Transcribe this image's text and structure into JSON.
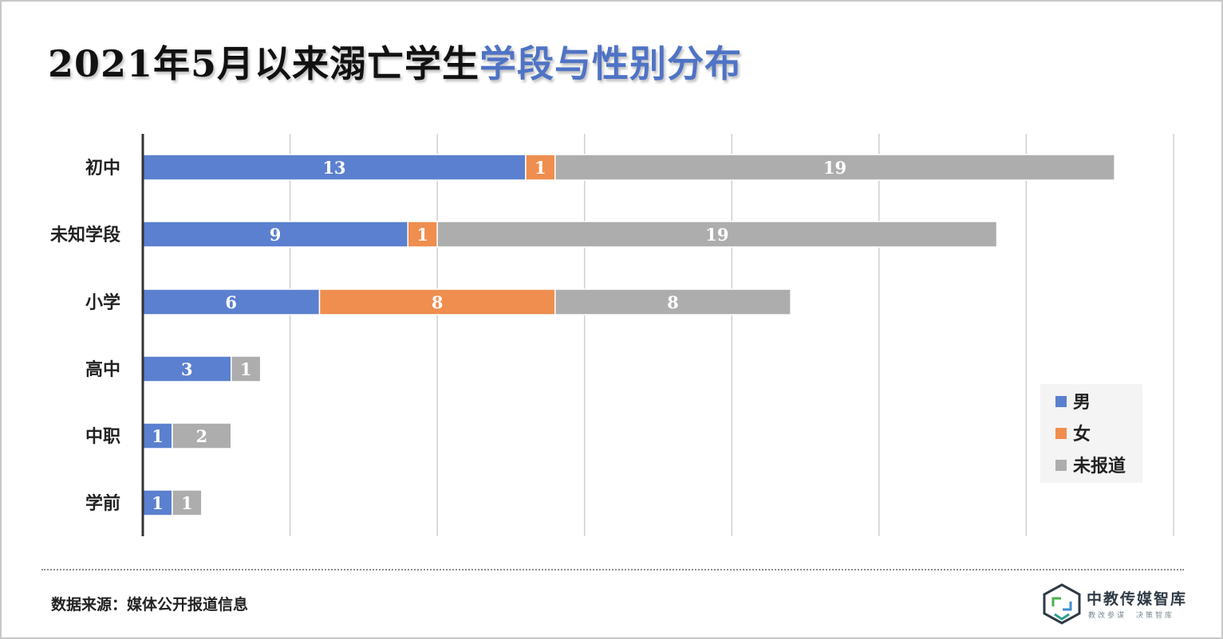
{
  "title": {
    "part1": "2021年5月以来溺亡学生",
    "part2": "学段与性别分布"
  },
  "chart_data": {
    "type": "bar",
    "orientation": "horizontal",
    "stacked": true,
    "categories": [
      "初中",
      "未知学段",
      "小学",
      "高中",
      "中职",
      "学前"
    ],
    "series": [
      {
        "name": "男",
        "color": "#5b80cf",
        "values": [
          13,
          9,
          6,
          3,
          1,
          1
        ]
      },
      {
        "name": "女",
        "color": "#ef8e4f",
        "values": [
          1,
          1,
          8,
          0,
          0,
          0
        ]
      },
      {
        "name": "未报道",
        "color": "#adadad",
        "values": [
          19,
          19,
          8,
          1,
          2,
          1
        ]
      }
    ],
    "xlim": [
      0,
      35
    ],
    "grid": true,
    "legend_position": "bottom-right"
  },
  "source": "数据来源：媒体公开报道信息",
  "logo": {
    "name": "中教传媒智库",
    "tagline": "教改参谋　决策智库"
  }
}
